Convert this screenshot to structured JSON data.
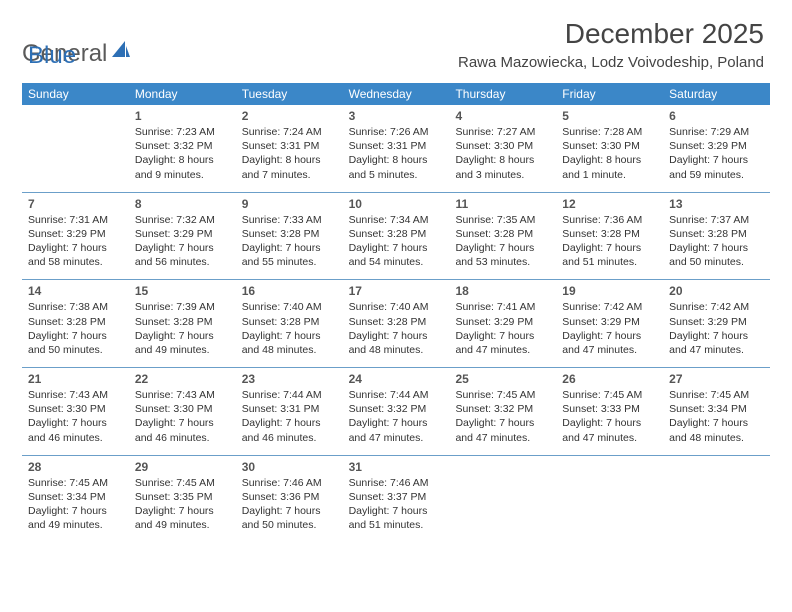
{
  "logo": {
    "text1": "General",
    "text2": "Blue"
  },
  "title": "December 2025",
  "location": "Rawa Mazowiecka, Lodz Voivodeship, Poland",
  "header_color": "#3b87c8",
  "divider_color": "#6b9fc9",
  "dow": [
    "Sunday",
    "Monday",
    "Tuesday",
    "Wednesday",
    "Thursday",
    "Friday",
    "Saturday"
  ],
  "weeks": [
    [
      null,
      {
        "n": "1",
        "sr": "Sunrise: 7:23 AM",
        "ss": "Sunset: 3:32 PM",
        "d1": "Daylight: 8 hours",
        "d2": "and 9 minutes."
      },
      {
        "n": "2",
        "sr": "Sunrise: 7:24 AM",
        "ss": "Sunset: 3:31 PM",
        "d1": "Daylight: 8 hours",
        "d2": "and 7 minutes."
      },
      {
        "n": "3",
        "sr": "Sunrise: 7:26 AM",
        "ss": "Sunset: 3:31 PM",
        "d1": "Daylight: 8 hours",
        "d2": "and 5 minutes."
      },
      {
        "n": "4",
        "sr": "Sunrise: 7:27 AM",
        "ss": "Sunset: 3:30 PM",
        "d1": "Daylight: 8 hours",
        "d2": "and 3 minutes."
      },
      {
        "n": "5",
        "sr": "Sunrise: 7:28 AM",
        "ss": "Sunset: 3:30 PM",
        "d1": "Daylight: 8 hours",
        "d2": "and 1 minute."
      },
      {
        "n": "6",
        "sr": "Sunrise: 7:29 AM",
        "ss": "Sunset: 3:29 PM",
        "d1": "Daylight: 7 hours",
        "d2": "and 59 minutes."
      }
    ],
    [
      {
        "n": "7",
        "sr": "Sunrise: 7:31 AM",
        "ss": "Sunset: 3:29 PM",
        "d1": "Daylight: 7 hours",
        "d2": "and 58 minutes."
      },
      {
        "n": "8",
        "sr": "Sunrise: 7:32 AM",
        "ss": "Sunset: 3:29 PM",
        "d1": "Daylight: 7 hours",
        "d2": "and 56 minutes."
      },
      {
        "n": "9",
        "sr": "Sunrise: 7:33 AM",
        "ss": "Sunset: 3:28 PM",
        "d1": "Daylight: 7 hours",
        "d2": "and 55 minutes."
      },
      {
        "n": "10",
        "sr": "Sunrise: 7:34 AM",
        "ss": "Sunset: 3:28 PM",
        "d1": "Daylight: 7 hours",
        "d2": "and 54 minutes."
      },
      {
        "n": "11",
        "sr": "Sunrise: 7:35 AM",
        "ss": "Sunset: 3:28 PM",
        "d1": "Daylight: 7 hours",
        "d2": "and 53 minutes."
      },
      {
        "n": "12",
        "sr": "Sunrise: 7:36 AM",
        "ss": "Sunset: 3:28 PM",
        "d1": "Daylight: 7 hours",
        "d2": "and 51 minutes."
      },
      {
        "n": "13",
        "sr": "Sunrise: 7:37 AM",
        "ss": "Sunset: 3:28 PM",
        "d1": "Daylight: 7 hours",
        "d2": "and 50 minutes."
      }
    ],
    [
      {
        "n": "14",
        "sr": "Sunrise: 7:38 AM",
        "ss": "Sunset: 3:28 PM",
        "d1": "Daylight: 7 hours",
        "d2": "and 50 minutes."
      },
      {
        "n": "15",
        "sr": "Sunrise: 7:39 AM",
        "ss": "Sunset: 3:28 PM",
        "d1": "Daylight: 7 hours",
        "d2": "and 49 minutes."
      },
      {
        "n": "16",
        "sr": "Sunrise: 7:40 AM",
        "ss": "Sunset: 3:28 PM",
        "d1": "Daylight: 7 hours",
        "d2": "and 48 minutes."
      },
      {
        "n": "17",
        "sr": "Sunrise: 7:40 AM",
        "ss": "Sunset: 3:28 PM",
        "d1": "Daylight: 7 hours",
        "d2": "and 48 minutes."
      },
      {
        "n": "18",
        "sr": "Sunrise: 7:41 AM",
        "ss": "Sunset: 3:29 PM",
        "d1": "Daylight: 7 hours",
        "d2": "and 47 minutes."
      },
      {
        "n": "19",
        "sr": "Sunrise: 7:42 AM",
        "ss": "Sunset: 3:29 PM",
        "d1": "Daylight: 7 hours",
        "d2": "and 47 minutes."
      },
      {
        "n": "20",
        "sr": "Sunrise: 7:42 AM",
        "ss": "Sunset: 3:29 PM",
        "d1": "Daylight: 7 hours",
        "d2": "and 47 minutes."
      }
    ],
    [
      {
        "n": "21",
        "sr": "Sunrise: 7:43 AM",
        "ss": "Sunset: 3:30 PM",
        "d1": "Daylight: 7 hours",
        "d2": "and 46 minutes."
      },
      {
        "n": "22",
        "sr": "Sunrise: 7:43 AM",
        "ss": "Sunset: 3:30 PM",
        "d1": "Daylight: 7 hours",
        "d2": "and 46 minutes."
      },
      {
        "n": "23",
        "sr": "Sunrise: 7:44 AM",
        "ss": "Sunset: 3:31 PM",
        "d1": "Daylight: 7 hours",
        "d2": "and 46 minutes."
      },
      {
        "n": "24",
        "sr": "Sunrise: 7:44 AM",
        "ss": "Sunset: 3:32 PM",
        "d1": "Daylight: 7 hours",
        "d2": "and 47 minutes."
      },
      {
        "n": "25",
        "sr": "Sunrise: 7:45 AM",
        "ss": "Sunset: 3:32 PM",
        "d1": "Daylight: 7 hours",
        "d2": "and 47 minutes."
      },
      {
        "n": "26",
        "sr": "Sunrise: 7:45 AM",
        "ss": "Sunset: 3:33 PM",
        "d1": "Daylight: 7 hours",
        "d2": "and 47 minutes."
      },
      {
        "n": "27",
        "sr": "Sunrise: 7:45 AM",
        "ss": "Sunset: 3:34 PM",
        "d1": "Daylight: 7 hours",
        "d2": "and 48 minutes."
      }
    ],
    [
      {
        "n": "28",
        "sr": "Sunrise: 7:45 AM",
        "ss": "Sunset: 3:34 PM",
        "d1": "Daylight: 7 hours",
        "d2": "and 49 minutes."
      },
      {
        "n": "29",
        "sr": "Sunrise: 7:45 AM",
        "ss": "Sunset: 3:35 PM",
        "d1": "Daylight: 7 hours",
        "d2": "and 49 minutes."
      },
      {
        "n": "30",
        "sr": "Sunrise: 7:46 AM",
        "ss": "Sunset: 3:36 PM",
        "d1": "Daylight: 7 hours",
        "d2": "and 50 minutes."
      },
      {
        "n": "31",
        "sr": "Sunrise: 7:46 AM",
        "ss": "Sunset: 3:37 PM",
        "d1": "Daylight: 7 hours",
        "d2": "and 51 minutes."
      },
      null,
      null,
      null
    ]
  ]
}
